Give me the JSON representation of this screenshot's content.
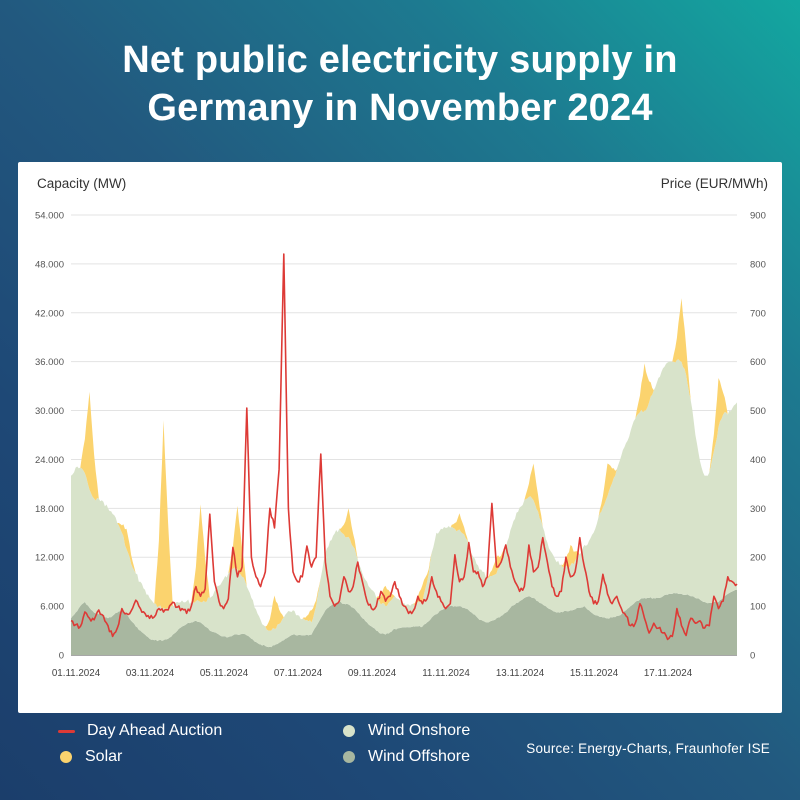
{
  "header": {
    "title_line1": "Net public electricity supply in",
    "title_line2": "Germany in November 2024"
  },
  "panel": {
    "left_axis_title": "Capacity (MW)",
    "right_axis_title": "Price (EUR/MWh)"
  },
  "legend": {
    "items": [
      {
        "label": "Day Ahead Auction",
        "color": "#dd3a36",
        "marker": "line"
      },
      {
        "label": "Solar",
        "color": "#fbd36e",
        "marker": "dot"
      },
      {
        "label": "Wind Onshore",
        "color": "#d8e3ca",
        "marker": "dot"
      },
      {
        "label": "Wind Offshore",
        "color": "#a8b7a0",
        "marker": "dot"
      }
    ]
  },
  "source": "Source: Energy-Charts, Fraunhofer ISE",
  "chart_data": {
    "type": "area",
    "stacked": true,
    "title": "Net public electricity supply in Germany in November 2024",
    "xlabel": "",
    "ylabel_left": "Capacity (MW)",
    "ylabel_right": "Price (EUR/MWh)",
    "left_axis": {
      "min": 0,
      "max": 54000,
      "step": 6000,
      "tick_labels": [
        "0",
        "6.000",
        "12.000",
        "18.000",
        "24.000",
        "30.000",
        "36.000",
        "42.000",
        "48.000",
        "54.000"
      ]
    },
    "right_axis": {
      "min": 0,
      "max": 900,
      "step": 100,
      "tick_labels": [
        "0",
        "100",
        "200",
        "300",
        "400",
        "500",
        "600",
        "700",
        "800",
        "900"
      ]
    },
    "x_axis": {
      "start": "01.11.2024 00:00",
      "end": "19.11.2024 00:00",
      "step_hours": 3,
      "days": 18,
      "tick_labels": [
        "01.11.2024",
        "03.11.2024",
        "05.11.2024",
        "07.11.2024",
        "09.11.2024",
        "11.11.2024",
        "13.11.2024",
        "15.11.2024",
        "17.11.2024"
      ]
    },
    "grid": "horizontal",
    "legend_position": "bottom",
    "series": [
      {
        "name": "Wind Offshore",
        "unit": "MW",
        "type": "area",
        "stack": true,
        "color": "#a8b7a0",
        "values": [
          4500,
          5200,
          6000,
          6500,
          5800,
          5200,
          5000,
          4800,
          4500,
          4800,
          5200,
          5500,
          5000,
          4200,
          3500,
          3000,
          2500,
          2000,
          1800,
          1800,
          1800,
          2000,
          2500,
          3000,
          3500,
          3800,
          4000,
          4200,
          4000,
          3500,
          3000,
          2800,
          2500,
          2300,
          2200,
          2400,
          2500,
          2600,
          2400,
          2000,
          1600,
          1300,
          1100,
          1000,
          1200,
          1500,
          1800,
          2200,
          2500,
          2400,
          2400,
          2500,
          2500,
          3500,
          4500,
          5500,
          6000,
          6300,
          6500,
          6300,
          6200,
          5800,
          5200,
          4500,
          4000,
          3500,
          3000,
          2600,
          2500,
          2800,
          3200,
          3300,
          3400,
          3400,
          3500,
          3500,
          3500,
          4000,
          4600,
          5000,
          5500,
          5800,
          6000,
          6000,
          6000,
          5800,
          5500,
          5000,
          4500,
          4200,
          4000,
          4200,
          4500,
          4800,
          5200,
          5800,
          6200,
          6600,
          7000,
          7200,
          7000,
          6600,
          6200,
          5800,
          5500,
          5200,
          5300,
          5400,
          5500,
          5600,
          5800,
          6000,
          5500,
          5000,
          4800,
          4600,
          4500,
          4600,
          4800,
          5000,
          5500,
          6000,
          6500,
          6800,
          7000,
          7000,
          7000,
          7000,
          7200,
          7400,
          7500,
          7600,
          7500,
          7400,
          7200,
          7000,
          6800,
          6500,
          6400,
          6500,
          6500,
          7000,
          7500,
          7800,
          8000
        ]
      },
      {
        "name": "Wind Onshore",
        "unit": "MW",
        "type": "area",
        "stack": true,
        "color": "#d8e3ca",
        "values": [
          17500,
          17800,
          17000,
          15800,
          14500,
          14000,
          14200,
          14000,
          13500,
          12500,
          11000,
          9500,
          8000,
          7000,
          6500,
          6000,
          5500,
          5000,
          4500,
          4200,
          4000,
          3800,
          3500,
          3500,
          3200,
          2800,
          2500,
          2400,
          2500,
          3000,
          4000,
          5000,
          6000,
          7000,
          7800,
          8200,
          8000,
          7000,
          6000,
          5000,
          4000,
          3000,
          2400,
          2000,
          2000,
          2300,
          2800,
          3200,
          3000,
          2500,
          2000,
          1800,
          1500,
          2500,
          5000,
          7000,
          8000,
          8600,
          9000,
          8500,
          8300,
          7500,
          6500,
          5500,
          5000,
          4500,
          4000,
          3600,
          3500,
          3800,
          4000,
          3500,
          3000,
          2800,
          2800,
          3000,
          3000,
          5000,
          8000,
          10000,
          10000,
          9800,
          9600,
          9500,
          9400,
          9000,
          8000,
          7000,
          6500,
          6000,
          5500,
          5500,
          5500,
          6500,
          8000,
          9500,
          10500,
          11500,
          12000,
          12200,
          12000,
          11000,
          9500,
          8000,
          7000,
          6200,
          5800,
          5500,
          5500,
          6000,
          6500,
          7500,
          8500,
          10000,
          12000,
          13500,
          15000,
          16500,
          18000,
          19500,
          20500,
          21500,
          22500,
          23000,
          23000,
          24000,
          25500,
          27000,
          28000,
          28500,
          28500,
          28600,
          28500,
          27000,
          24000,
          20000,
          17000,
          15500,
          16000,
          18500,
          21500,
          22500,
          22000,
          22500,
          23000
        ]
      },
      {
        "name": "Solar",
        "unit": "MW",
        "type": "area",
        "stack": true,
        "color": "#fbd36e",
        "values": [
          0,
          0,
          0,
          4200,
          12000,
          5400,
          0,
          0,
          0,
          0,
          0,
          900,
          2500,
          1100,
          0,
          0,
          0,
          0,
          0,
          8000,
          23000,
          10400,
          0,
          0,
          0,
          0,
          0,
          4200,
          12000,
          5400,
          0,
          0,
          0,
          0,
          0,
          2700,
          7800,
          3500,
          0,
          0,
          0,
          0,
          0,
          1400,
          4100,
          1800,
          0,
          0,
          0,
          0,
          0,
          500,
          1500,
          700,
          0,
          0,
          0,
          0,
          0,
          1200,
          3500,
          1600,
          0,
          0,
          0,
          0,
          0,
          900,
          2500,
          1100,
          0,
          0,
          0,
          0,
          0,
          700,
          2100,
          900,
          0,
          0,
          0,
          0,
          0,
          700,
          2000,
          900,
          0,
          0,
          0,
          0,
          0,
          700,
          2000,
          900,
          0,
          0,
          0,
          0,
          0,
          1600,
          4500,
          2000,
          0,
          0,
          0,
          0,
          0,
          900,
          2500,
          1100,
          0,
          0,
          0,
          0,
          0,
          1400,
          4000,
          1800,
          0,
          0,
          0,
          0,
          0,
          2000,
          5800,
          2600,
          0,
          0,
          0,
          0,
          0,
          2700,
          7800,
          3500,
          0,
          0,
          0,
          0,
          0,
          2100,
          6000,
          2700,
          0,
          0,
          0
        ]
      },
      {
        "name": "Day Ahead Auction",
        "unit": "EUR/MWh",
        "type": "line",
        "axis": "right",
        "color": "#dd3a36",
        "values": [
          70,
          62,
          58,
          88,
          75,
          72,
          92,
          80,
          60,
          38,
          55,
          95,
          85,
          90,
          112,
          95,
          85,
          75,
          78,
          95,
          88,
          92,
          108,
          98,
          95,
          85,
          100,
          140,
          120,
          135,
          288,
          150,
          110,
          95,
          115,
          220,
          160,
          180,
          505,
          200,
          160,
          140,
          170,
          300,
          260,
          380,
          820,
          300,
          170,
          150,
          160,
          223,
          180,
          200,
          411,
          190,
          120,
          100,
          110,
          160,
          130,
          140,
          190,
          150,
          110,
          95,
          100,
          130,
          110,
          120,
          150,
          120,
          100,
          85,
          90,
          120,
          105,
          115,
          160,
          130,
          110,
          95,
          105,
          205,
          150,
          160,
          230,
          170,
          170,
          140,
          160,
          310,
          180,
          190,
          225,
          180,
          150,
          130,
          140,
          225,
          170,
          180,
          240,
          190,
          140,
          120,
          130,
          200,
          160,
          170,
          240,
          180,
          130,
          105,
          110,
          165,
          125,
          105,
          120,
          95,
          80,
          60,
          65,
          105,
          75,
          45,
          65,
          55,
          45,
          32,
          38,
          95,
          60,
          40,
          75,
          65,
          70,
          55,
          60,
          120,
          95,
          110,
          160,
          150,
          145
        ]
      }
    ]
  }
}
